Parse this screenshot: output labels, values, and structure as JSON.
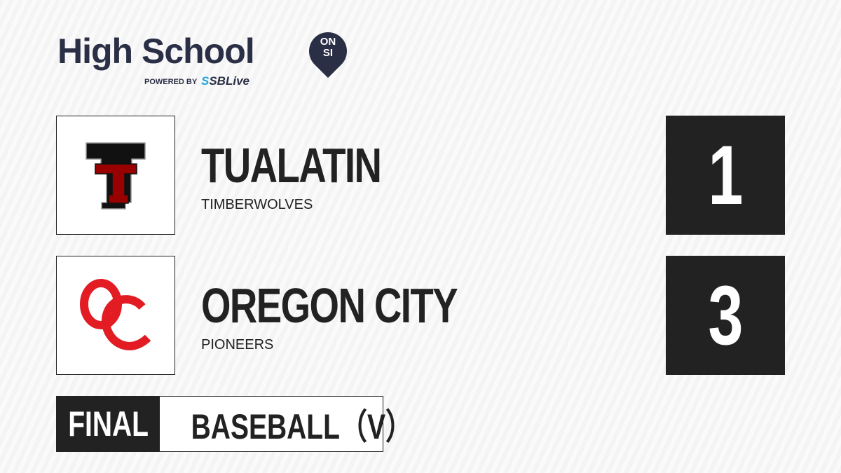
{
  "brand": {
    "title": "High School",
    "badge_top": "ON",
    "badge_bottom": "SI",
    "powered_by": "POWERED BY",
    "partner_s": "S",
    "partner": "SBLive"
  },
  "teams": [
    {
      "name": "TUALATIN",
      "mascot": "TIMBERWOLVES",
      "score": "1",
      "logo_colors": [
        "#111111",
        "#990000"
      ]
    },
    {
      "name": "OREGON CITY",
      "mascot": "PIONEERS",
      "score": "3",
      "logo_colors": [
        "#e31b23"
      ]
    }
  ],
  "status": "FINAL",
  "sport": "BASEBALL（V）"
}
